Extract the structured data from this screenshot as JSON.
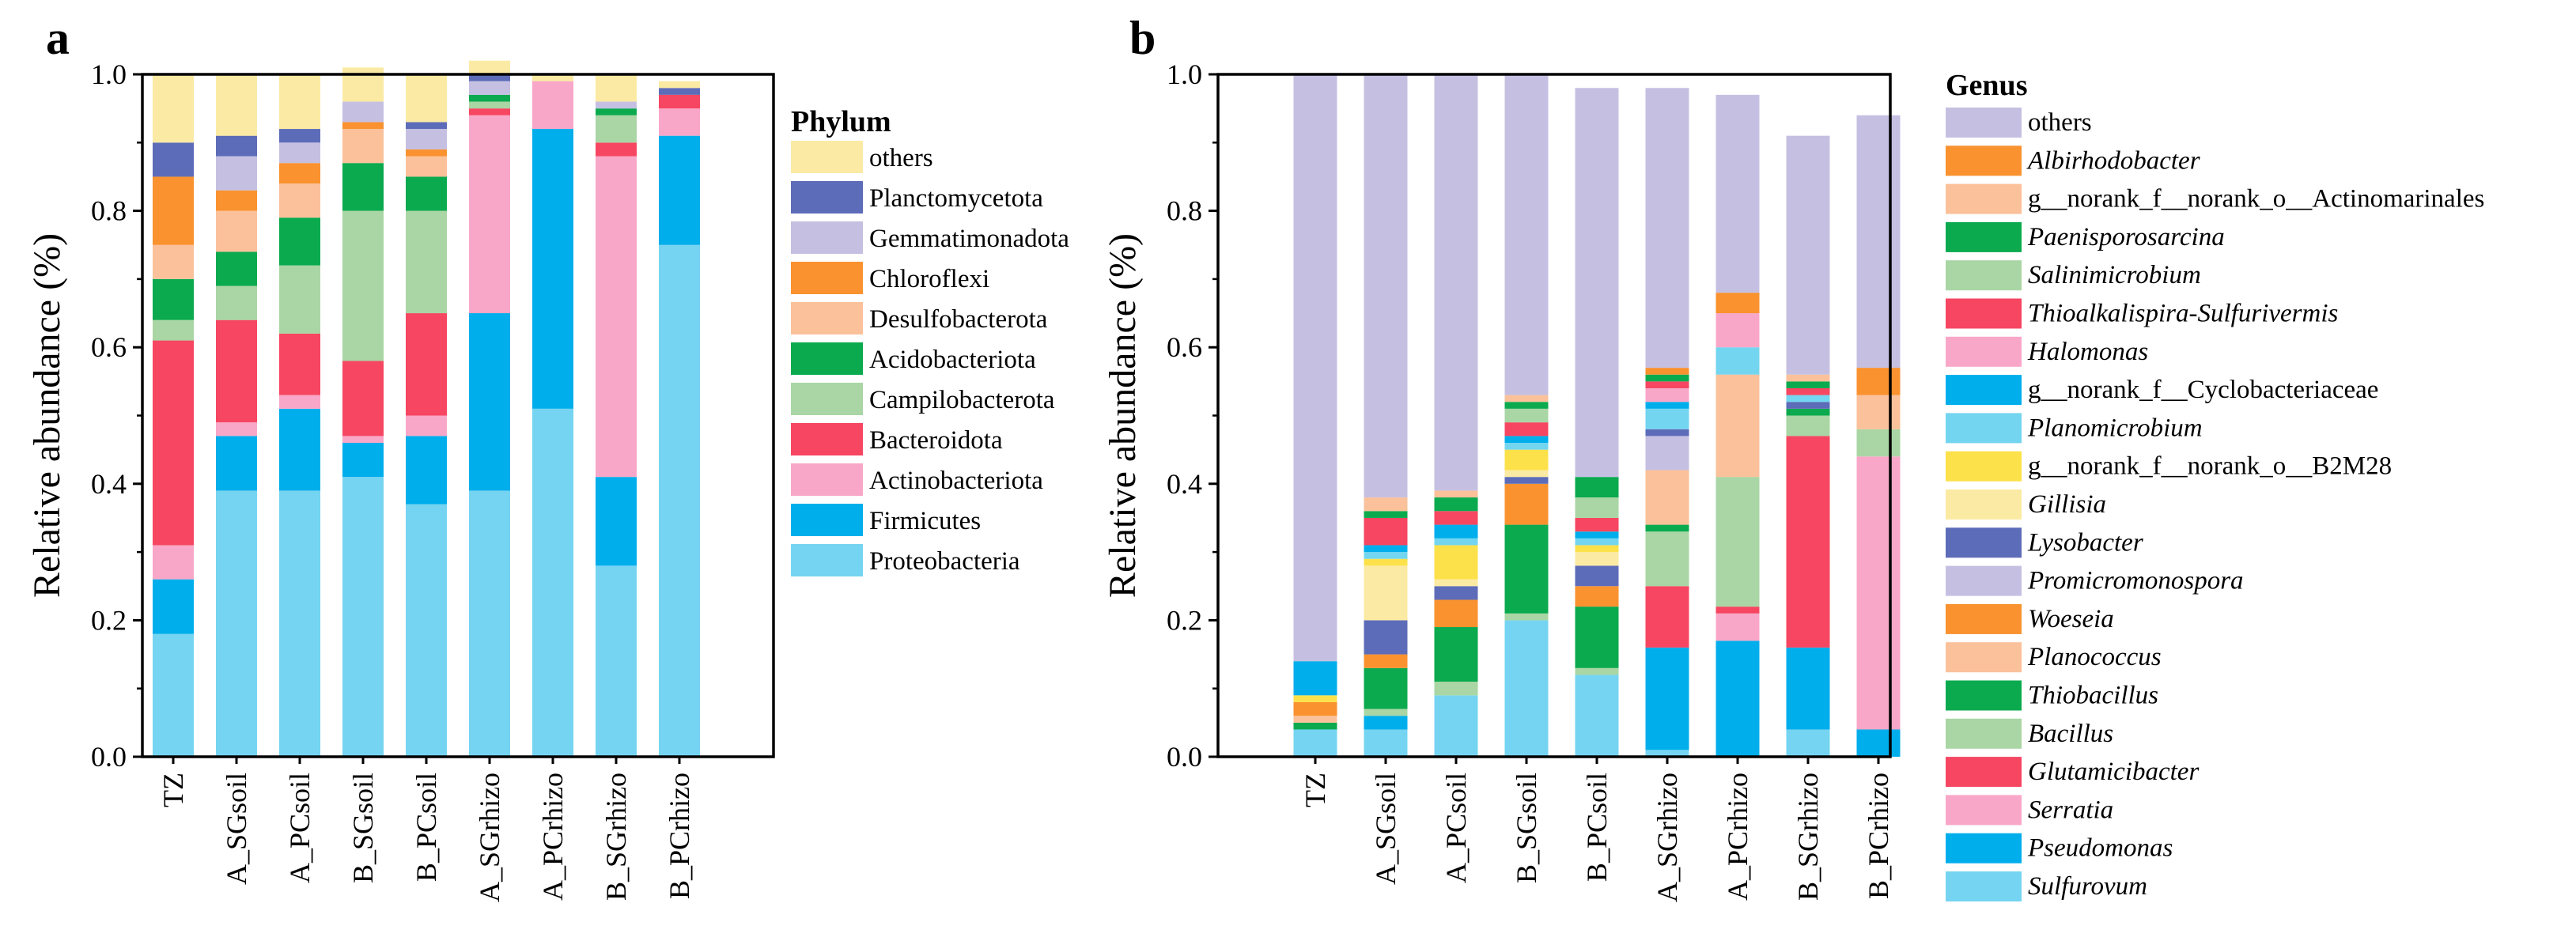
{
  "chart_data": [
    {
      "panel": "a",
      "type": "bar",
      "stacked": true,
      "ylabel": "Relative abundance (%)",
      "xlabel": "",
      "ylim": [
        0,
        1.0
      ],
      "yticks": [
        "0.0",
        "0.2",
        "0.4",
        "0.6",
        "0.8",
        "1.0"
      ],
      "legend_title": "Phylum",
      "legend_position": "right",
      "categories": [
        "TZ",
        "A_SGsoil",
        "A_PCsoil",
        "B_SGsoil",
        "B_PCsoil",
        "A_SGrhizo",
        "A_PCrhizo",
        "B_SGrhizo",
        "B_PCrhizo"
      ],
      "series": [
        {
          "name": "Proteobacteria",
          "color": "#75D4F1",
          "values": [
            0.18,
            0.39,
            0.39,
            0.41,
            0.37,
            0.39,
            0.51,
            0.28,
            0.75
          ]
        },
        {
          "name": "Firmicutes",
          "color": "#00AEEC",
          "values": [
            0.08,
            0.08,
            0.12,
            0.05,
            0.1,
            0.26,
            0.41,
            0.13,
            0.16
          ]
        },
        {
          "name": "Actinobacteriota",
          "color": "#F9A7C8",
          "values": [
            0.05,
            0.02,
            0.02,
            0.01,
            0.03,
            0.29,
            0.07,
            0.47,
            0.04
          ]
        },
        {
          "name": "Bacteroidota",
          "color": "#F64661",
          "values": [
            0.3,
            0.15,
            0.09,
            0.11,
            0.15,
            0.01,
            0.0,
            0.02,
            0.02
          ]
        },
        {
          "name": "Campilobacterota",
          "color": "#A9D6A4",
          "values": [
            0.03,
            0.05,
            0.1,
            0.22,
            0.15,
            0.01,
            0.0,
            0.04,
            0.0
          ]
        },
        {
          "name": "Acidobacteriota",
          "color": "#0BAA4E",
          "values": [
            0.06,
            0.05,
            0.07,
            0.07,
            0.05,
            0.01,
            0.0,
            0.01,
            0.0
          ]
        },
        {
          "name": "Desulfobacterota",
          "color": "#FBC19A",
          "values": [
            0.05,
            0.06,
            0.05,
            0.05,
            0.03,
            0.0,
            0.0,
            0.0,
            0.0
          ]
        },
        {
          "name": "Chloroflexi",
          "color": "#F9922F",
          "values": [
            0.1,
            0.03,
            0.03,
            0.01,
            0.01,
            0.0,
            0.0,
            0.0,
            0.0
          ]
        },
        {
          "name": "Gemmatimonadota",
          "color": "#C5C0E2",
          "values": [
            0.0,
            0.05,
            0.03,
            0.03,
            0.03,
            0.02,
            0.0,
            0.01,
            0.0
          ]
        },
        {
          "name": "Planctomycetota",
          "color": "#5D6CB8",
          "values": [
            0.05,
            0.03,
            0.02,
            0.0,
            0.01,
            0.01,
            0.0,
            0.0,
            0.01
          ]
        },
        {
          "name": "others",
          "color": "#FBEAA3",
          "values": [
            0.1,
            0.09,
            0.08,
            0.05,
            0.07,
            0.02,
            0.01,
            0.04,
            0.01
          ]
        }
      ]
    },
    {
      "panel": "b",
      "type": "bar",
      "stacked": true,
      "ylabel": "Relative abundance (%)",
      "xlabel": "",
      "ylim": [
        0,
        1.0
      ],
      "yticks": [
        "0.0",
        "0.2",
        "0.4",
        "0.6",
        "0.8",
        "1.0"
      ],
      "legend_title": "Genus",
      "legend_position": "right",
      "categories": [
        "TZ",
        "A_SGsoil",
        "A_PCsoil",
        "B_SGsoil",
        "B_PCsoil",
        "A_SGrhizo",
        "A_PCrhizo",
        "B_SGrhizo",
        "B_PCrhizo"
      ],
      "series": [
        {
          "name": "Sulfurovum",
          "italic": true,
          "color": "#75D4F1",
          "values": [
            0.04,
            0.04,
            0.09,
            0.2,
            0.12,
            0.01,
            0.0,
            0.04,
            0.0
          ]
        },
        {
          "name": "Pseudomonas",
          "italic": true,
          "color": "#00AEEC",
          "values": [
            0.0,
            0.02,
            0.0,
            0.0,
            0.0,
            0.15,
            0.17,
            0.12,
            0.04
          ]
        },
        {
          "name": "Serratia",
          "italic": true,
          "color": "#F9A7C8",
          "values": [
            0.0,
            0.0,
            0.0,
            0.0,
            0.0,
            0.0,
            0.04,
            0.0,
            0.4
          ]
        },
        {
          "name": "Glutamicibacter",
          "italic": true,
          "color": "#F64661",
          "values": [
            0.0,
            0.0,
            0.0,
            0.0,
            0.0,
            0.09,
            0.01,
            0.31,
            0.0
          ]
        },
        {
          "name": "Bacillus",
          "italic": true,
          "color": "#A9D6A4",
          "values": [
            0.0,
            0.01,
            0.02,
            0.01,
            0.01,
            0.08,
            0.19,
            0.03,
            0.04
          ]
        },
        {
          "name": "Thiobacillus",
          "italic": true,
          "color": "#0BAA4E",
          "values": [
            0.01,
            0.06,
            0.08,
            0.13,
            0.09,
            0.01,
            0.0,
            0.01,
            0.0
          ]
        },
        {
          "name": "Planococcus",
          "italic": true,
          "color": "#FBC19A",
          "values": [
            0.01,
            0.0,
            0.0,
            0.0,
            0.0,
            0.08,
            0.15,
            0.0,
            0.05
          ]
        },
        {
          "name": "Woeseia",
          "italic": true,
          "color": "#F9922F",
          "values": [
            0.02,
            0.02,
            0.04,
            0.06,
            0.03,
            0.0,
            0.0,
            0.0,
            0.0
          ]
        },
        {
          "name": "Promicromonospora",
          "italic": true,
          "color": "#C5C0E2",
          "values": [
            0.0,
            0.0,
            0.0,
            0.0,
            0.0,
            0.05,
            0.0,
            0.0,
            0.0
          ]
        },
        {
          "name": "Lysobacter",
          "italic": true,
          "color": "#5D6CB8",
          "values": [
            0.0,
            0.05,
            0.02,
            0.01,
            0.03,
            0.01,
            0.0,
            0.01,
            0.0
          ]
        },
        {
          "name": "Gillisia",
          "italic": true,
          "color": "#FBEAA3",
          "values": [
            0.0,
            0.08,
            0.01,
            0.01,
            0.02,
            0.0,
            0.0,
            0.0,
            0.0
          ]
        },
        {
          "name": "g__norank_f__norank_o__B2M28",
          "italic": false,
          "color": "#FDE14B",
          "values": [
            0.01,
            0.01,
            0.05,
            0.03,
            0.01,
            0.0,
            0.0,
            0.0,
            0.0
          ]
        },
        {
          "name": "Planomicrobium",
          "italic": true,
          "color": "#73D5EF",
          "values": [
            0.0,
            0.01,
            0.01,
            0.01,
            0.01,
            0.03,
            0.04,
            0.01,
            0.0
          ]
        },
        {
          "name": "g__norank_f__Cyclobacteriaceae",
          "italic": false,
          "color": "#00AEEC",
          "values": [
            0.05,
            0.01,
            0.02,
            0.01,
            0.01,
            0.01,
            0.0,
            0.0,
            0.0
          ]
        },
        {
          "name": "Halomonas",
          "italic": true,
          "color": "#F9A7C8",
          "values": [
            0.0,
            0.0,
            0.0,
            0.0,
            0.0,
            0.02,
            0.05,
            0.0,
            0.0
          ]
        },
        {
          "name": "Thioalkalispira-Sulfurivermis",
          "italic": true,
          "color": "#F64661",
          "values": [
            0.0,
            0.04,
            0.02,
            0.02,
            0.02,
            0.01,
            0.0,
            0.01,
            0.0
          ]
        },
        {
          "name": "Salinimicrobium",
          "italic": true,
          "color": "#A9D6A4",
          "values": [
            0.0,
            0.0,
            0.0,
            0.02,
            0.03,
            0.0,
            0.0,
            0.0,
            0.0
          ]
        },
        {
          "name": "Paenisporosarcina",
          "italic": true,
          "color": "#0BAA4E",
          "values": [
            0.0,
            0.01,
            0.02,
            0.01,
            0.03,
            0.01,
            0.0,
            0.01,
            0.0
          ]
        },
        {
          "name": "g__norank_f__norank_o__Actinomarinales",
          "italic": false,
          "color": "#FBC19A",
          "values": [
            0.0,
            0.02,
            0.01,
            0.01,
            0.0,
            0.0,
            0.0,
            0.01,
            0.0
          ]
        },
        {
          "name": "Albirhodobacter",
          "italic": true,
          "color": "#F9922F",
          "values": [
            0.0,
            0.0,
            0.0,
            0.0,
            0.0,
            0.01,
            0.03,
            0.0,
            0.04
          ]
        },
        {
          "name": "others",
          "italic": false,
          "color": "#C5C0E2",
          "values": [
            0.86,
            0.62,
            0.61,
            0.47,
            0.57,
            0.41,
            0.29,
            0.35,
            0.37
          ]
        }
      ]
    }
  ]
}
